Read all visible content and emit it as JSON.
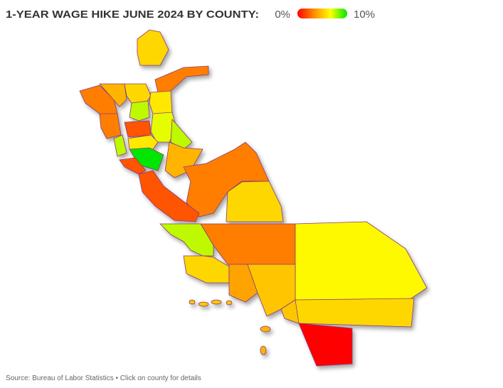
{
  "header": {
    "title": "1-YEAR WAGE HIKE JUNE 2024 BY COUNTY:"
  },
  "legend": {
    "min_label": "0%",
    "max_label": "10%",
    "min": 0,
    "max": 10,
    "colors": [
      "#ff0000",
      "#ff8c00",
      "#ffff00",
      "#00e600"
    ]
  },
  "regions": [
    {
      "value": 5.5
    },
    {
      "value": 3
    },
    {
      "value": 3
    },
    {
      "value": 4.5
    },
    {
      "value": 5.5
    },
    {
      "value": 6
    },
    {
      "value": 7.5
    },
    {
      "value": 3
    },
    {
      "value": 2
    },
    {
      "value": 7
    },
    {
      "value": 7.5
    },
    {
      "value": 7.5
    },
    {
      "value": 6
    },
    {
      "value": 10
    },
    {
      "value": 4.5
    },
    {
      "value": 2
    },
    {
      "value": 3
    },
    {
      "value": 2
    },
    {
      "value": 5.5
    },
    {
      "value": 7.5
    },
    {
      "value": 3
    },
    {
      "value": 6.5
    },
    {
      "value": 5.5
    },
    {
      "value": 4
    },
    {
      "value": 5
    },
    {
      "value": 5
    },
    {
      "value": 5.5
    },
    {
      "value": 0
    },
    {
      "value": 5
    },
    {
      "value": 5
    },
    {
      "value": 5
    },
    {
      "value": 5
    },
    {
      "value": 4.5
    },
    {
      "value": 4.5
    }
  ],
  "footer": {
    "source": "Source: Bureau of Labor Statistics • Click on county for details"
  }
}
